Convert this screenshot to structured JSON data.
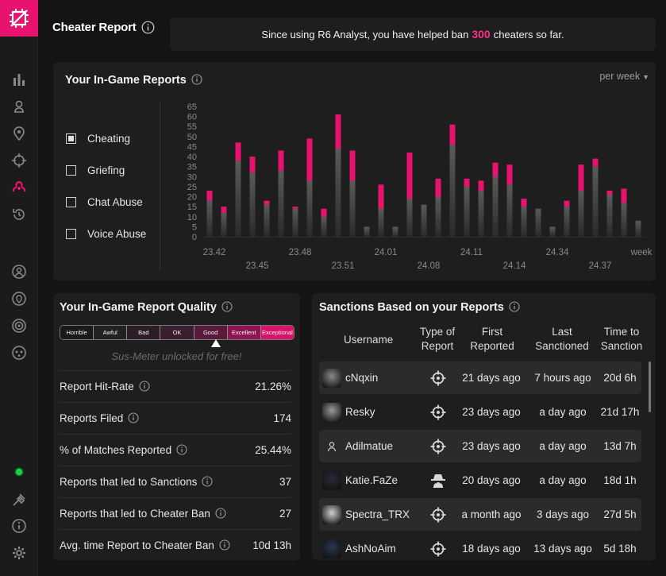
{
  "header": {
    "title": "Cheater Report",
    "banner_prefix": "Since using R6 Analyst, you have helped ban",
    "banner_count": "300",
    "banner_suffix": "cheaters so far."
  },
  "reports": {
    "title": "Your In-Game Reports",
    "period": "per week",
    "filters": [
      {
        "label": "Cheating",
        "checked": true
      },
      {
        "label": "Griefing",
        "checked": false
      },
      {
        "label": "Chat Abuse",
        "checked": false
      },
      {
        "label": "Voice Abuse",
        "checked": false
      }
    ]
  },
  "chart_data": {
    "type": "bar",
    "stacked": true,
    "yticks": [
      0,
      5,
      10,
      15,
      20,
      25,
      30,
      35,
      40,
      45,
      50,
      55,
      60,
      65
    ],
    "ylim": [
      0,
      65
    ],
    "x_tick_labels": [
      {
        "label": "23.42",
        "index": 0
      },
      {
        "label": "23.45",
        "index": 3
      },
      {
        "label": "23.48",
        "index": 6
      },
      {
        "label": "23.51",
        "index": 9
      },
      {
        "label": "24.01",
        "index": 12
      },
      {
        "label": "24.08",
        "index": 15
      },
      {
        "label": "24.11",
        "index": 18
      },
      {
        "label": "24.14",
        "index": 21
      },
      {
        "label": "24.34",
        "index": 24
      },
      {
        "label": "24.37",
        "index": 27
      },
      {
        "label": "week",
        "index": 30
      }
    ],
    "xlabel": "week",
    "series": [
      {
        "name": "base",
        "color": "#5a5a5a",
        "values": [
          18,
          12,
          38,
          32,
          16,
          33,
          14,
          28,
          10,
          44,
          28,
          5,
          14,
          5,
          19,
          16,
          20,
          46,
          25,
          23,
          30,
          26,
          15,
          14,
          5,
          15,
          23,
          35,
          21,
          17,
          8
        ]
      },
      {
        "name": "sanctioned",
        "color": "#e8136f",
        "values": [
          5,
          3,
          9,
          8,
          2,
          10,
          1,
          21,
          4,
          17,
          15,
          0,
          12,
          0,
          23,
          0,
          9,
          10,
          4,
          5,
          7,
          10,
          4,
          0,
          0,
          3,
          13,
          4,
          2,
          7,
          0
        ]
      }
    ]
  },
  "quality": {
    "title": "Your In-Game Report Quality",
    "meter": [
      {
        "label": "Horrible",
        "color": "#1a1a1a"
      },
      {
        "label": "Awful",
        "color": "#222222"
      },
      {
        "label": "Bad",
        "color": "#2c1e26"
      },
      {
        "label": "OK",
        "color": "#3a1f2e"
      },
      {
        "label": "Good",
        "color": "#5a1a3a"
      },
      {
        "label": "Excellent",
        "color": "#8d1550"
      },
      {
        "label": "Exceptional",
        "color": "#d8136a"
      }
    ],
    "sus_text": "Sus-Meter unlocked for free!",
    "stats": [
      {
        "label": "Report Hit-Rate",
        "value": "21.26%"
      },
      {
        "label": "Reports Filed",
        "value": "174"
      },
      {
        "label": "% of Matches Reported",
        "value": "25.44%"
      },
      {
        "label": "Reports that led to Sanctions",
        "value": "37"
      },
      {
        "label": "Reports that led to Cheater Ban",
        "value": "27"
      },
      {
        "label": "Avg. time Report to Cheater Ban",
        "value": "10d 13h"
      }
    ]
  },
  "sanctions": {
    "title": "Sanctions Based on your Reports",
    "columns": {
      "username": "Username",
      "type_1": "Type of",
      "type_2": "Report",
      "first_1": "First",
      "first_2": "Reported",
      "last_1": "Last",
      "last_2": "Sanctioned",
      "time_1": "Time to",
      "time_2": "Sanction"
    },
    "rows": [
      {
        "username": "cNqxin",
        "type": "crosshair-icon",
        "first": "21 days ago",
        "last": "7 hours ago",
        "time": "20d 6h",
        "avatar": "#8a8a8a"
      },
      {
        "username": "Resky",
        "type": "crosshair-icon",
        "first": "23 days ago",
        "last": "a day ago",
        "time": "21d 17h",
        "avatar": "#9a9a9a"
      },
      {
        "username": "Adilmatue",
        "type": "crosshair-icon",
        "first": "23 days ago",
        "last": "a day ago",
        "time": "13d 7h",
        "avatar": "none"
      },
      {
        "username": "Katie.FaZe",
        "type": "spy-icon",
        "first": "20 days ago",
        "last": "a day ago",
        "time": "18d 1h",
        "avatar": "#2a2a3a"
      },
      {
        "username": "Spectra_TRX",
        "type": "crosshair-icon",
        "first": "a month ago",
        "last": "3 days ago",
        "time": "27d 5h",
        "avatar": "#d0d0d0"
      },
      {
        "username": "AshNoAim",
        "type": "crosshair-icon",
        "first": "18 days ago",
        "last": "13 days ago",
        "time": "5d 18h",
        "avatar": "#2a3550"
      }
    ]
  },
  "colors": {
    "accent": "#e8136f",
    "status_online": "#22cc44"
  }
}
